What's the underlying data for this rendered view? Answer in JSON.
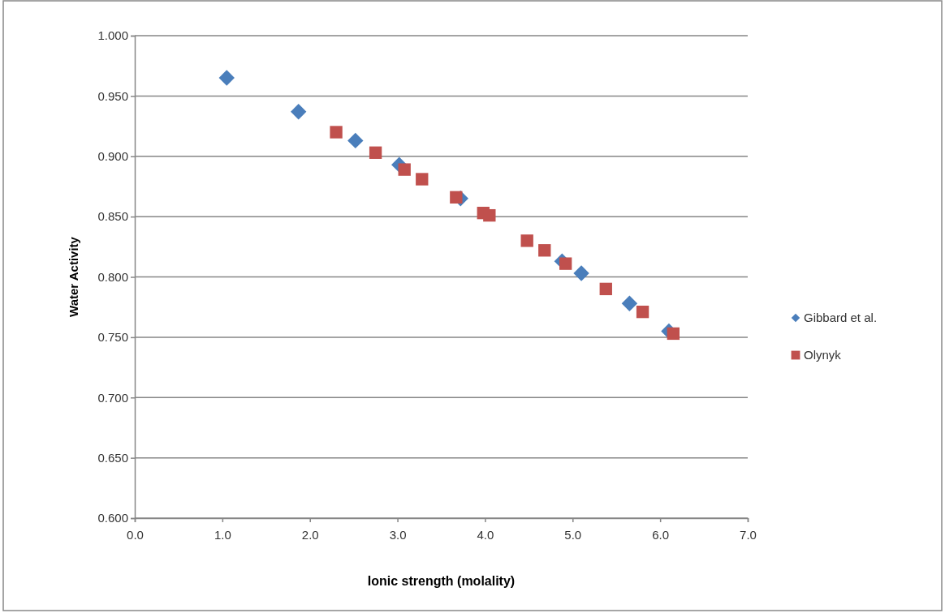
{
  "chart_data": {
    "type": "scatter",
    "xlabel": "Ionic strength (molality)",
    "ylabel": "Water Activity",
    "xlim": [
      0,
      7
    ],
    "xticks": [
      {
        "value": 0,
        "label": "0.0"
      },
      {
        "value": 1,
        "label": "1.0"
      },
      {
        "value": 2,
        "label": "2.0"
      },
      {
        "value": 3,
        "label": "3.0"
      },
      {
        "value": 4,
        "label": "4.0"
      },
      {
        "value": 5,
        "label": "5.0"
      },
      {
        "value": 6,
        "label": "6.0"
      },
      {
        "value": 7,
        "label": "7.0"
      }
    ],
    "ylim": [
      0.6,
      1.0
    ],
    "yticks": [
      {
        "value": 0.6,
        "label": "0.600"
      },
      {
        "value": 0.65,
        "label": "0.650"
      },
      {
        "value": 0.7,
        "label": "0.700"
      },
      {
        "value": 0.75,
        "label": "0.750"
      },
      {
        "value": 0.8,
        "label": "0.800"
      },
      {
        "value": 0.85,
        "label": "0.850"
      },
      {
        "value": 0.9,
        "label": "0.900"
      },
      {
        "value": 0.95,
        "label": "0.950"
      },
      {
        "value": 1.0,
        "label": "1.000"
      }
    ],
    "grid": "y",
    "legend": "right",
    "series": [
      {
        "name": "Gibbard et al.",
        "color": "#4a7ebb",
        "marker": "diamond",
        "x": [
          1.05,
          1.87,
          2.52,
          3.02,
          3.72,
          4.88,
          5.1,
          5.65,
          6.1
        ],
        "values": [
          0.965,
          0.937,
          0.913,
          0.893,
          0.865,
          0.813,
          0.803,
          0.778,
          0.755
        ]
      },
      {
        "name": "Olynyk",
        "color": "#c0504d",
        "marker": "square",
        "x": [
          2.3,
          2.75,
          3.08,
          3.28,
          3.67,
          3.98,
          4.05,
          4.48,
          4.68,
          4.92,
          5.38,
          5.8,
          6.15
        ],
        "values": [
          0.92,
          0.903,
          0.889,
          0.881,
          0.866,
          0.853,
          0.851,
          0.83,
          0.822,
          0.811,
          0.79,
          0.771,
          0.753
        ]
      }
    ]
  }
}
